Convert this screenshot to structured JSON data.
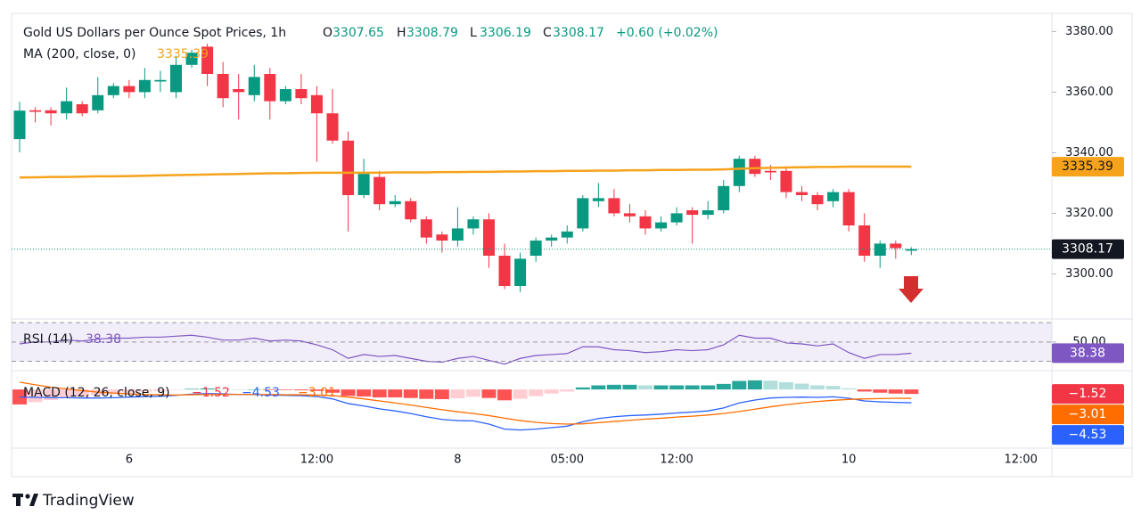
{
  "chart_data": [
    {
      "type": "candlestick",
      "title": "Gold US Dollars per Ounce Spot Prices, 1h",
      "ohlc_letters": [
        "O",
        "H",
        "L",
        "C"
      ],
      "change": "+0.60 (+0.02%)",
      "categories": [
        null,
        null,
        null,
        null,
        null,
        null,
        null,
        "6",
        null,
        null,
        null,
        null,
        null,
        null,
        null,
        null,
        null,
        null,
        null,
        "12:00",
        null,
        null,
        null,
        null,
        null,
        null,
        null,
        null,
        "8",
        null,
        null,
        null,
        null,
        null,
        null,
        "05:00",
        null,
        null,
        null,
        null,
        null,
        null,
        "12:00",
        null,
        null,
        null,
        null,
        null,
        null,
        null,
        null,
        null,
        null,
        "10",
        null,
        null,
        null,
        null,
        null,
        null,
        null,
        null,
        null,
        null,
        "12:00",
        null
      ],
      "open": [
        3344.5,
        3354,
        3354,
        3353,
        3356,
        3354,
        3359,
        3362,
        3360,
        3363.5,
        3360,
        3369,
        3375,
        3366,
        3361,
        3359,
        3366,
        3357,
        3361,
        3359,
        3353,
        3344,
        3326,
        3332,
        3323,
        3324,
        3318,
        3313,
        3311,
        3315,
        3318,
        3306,
        3296,
        3306,
        3311,
        3312,
        3315,
        3324,
        3325,
        3320,
        3319,
        3315,
        3317,
        3321,
        3319.5,
        3321,
        3329,
        3338,
        3334,
        3334,
        3327,
        3326,
        3324,
        3327,
        3316,
        3306,
        3310,
        3307.65,
        null,
        null,
        null,
        null,
        null,
        null,
        null,
        null
      ],
      "high": [
        3356.8,
        3355,
        3355,
        3361.5,
        3357,
        3365,
        3363,
        3364,
        3368,
        3367,
        3372,
        3374,
        3376,
        3370,
        3366,
        3369,
        3368,
        3362,
        3366,
        3362,
        3361,
        3347,
        3338,
        3334,
        3326,
        3325,
        3319,
        3314,
        3322,
        3319,
        3320,
        3310,
        3307,
        3312,
        3313,
        3316,
        3326,
        3330,
        3328,
        3323,
        3321,
        3319,
        3322,
        3322,
        3324,
        3331,
        3339,
        3339,
        3336,
        3335,
        3329,
        3327,
        3328,
        3328,
        3320,
        3311,
        3311,
        3308.79,
        null,
        null,
        null,
        null,
        null,
        null,
        null,
        null
      ],
      "low": [
        3340.1,
        3350,
        3349,
        3351,
        3352,
        3353,
        3358,
        3358,
        3358,
        3360,
        3358,
        3368,
        3362,
        3355,
        3351,
        3357,
        3351,
        3356,
        3356,
        3337,
        3343,
        3314,
        3325,
        3321,
        3322,
        3317,
        3310,
        3307,
        3309,
        3313,
        3302,
        3295,
        3294,
        3304,
        3309,
        3310,
        3314,
        3322,
        3319,
        3317,
        3313,
        3314,
        3316,
        3310,
        3318,
        3320,
        3327,
        3332,
        3331,
        3325,
        3324,
        3321,
        3322,
        3314,
        3304,
        3302,
        3305,
        3306.19,
        null,
        null,
        null,
        null,
        null,
        null,
        null,
        null
      ],
      "close": [
        3353.9,
        3353.5,
        3353,
        3357,
        3353,
        3359,
        3362,
        3360,
        3364,
        3364,
        3369,
        3373,
        3366,
        3358,
        3360,
        3365,
        3357,
        3361,
        3358,
        3353,
        3344,
        3326,
        3333,
        3323,
        3324,
        3318,
        3312,
        3311,
        3315,
        3318,
        3306,
        3296,
        3305,
        3311,
        3312,
        3314,
        3325,
        3325,
        3320,
        3319,
        3315,
        3317,
        3320,
        3319.5,
        3321,
        3329,
        3338,
        3333,
        3333.5,
        3327,
        3326,
        3323,
        3327,
        3316,
        3306,
        3310,
        3308.5,
        3308.17,
        null,
        null,
        null,
        null,
        null,
        null,
        null,
        null
      ],
      "up_color": "#089981",
      "down_color": "#f23645",
      "series": [
        {
          "name": "MA (200, close, 0)",
          "color": "#f7a21b",
          "values": [
            3331.8,
            3331.9,
            3332.0,
            3332.0,
            3332.1,
            3332.2,
            3332.2,
            3332.3,
            3332.4,
            3332.5,
            3332.6,
            3332.7,
            3332.8,
            3332.9,
            3333.0,
            3333.1,
            3333.2,
            3333.2,
            3333.3,
            3333.4,
            3333.4,
            3333.4,
            3333.4,
            3333.4,
            3333.5,
            3333.5,
            3333.5,
            3333.6,
            3333.6,
            3333.7,
            3333.7,
            3333.8,
            3333.8,
            3333.9,
            3333.9,
            3334.0,
            3334.0,
            3334.1,
            3334.1,
            3334.2,
            3334.2,
            3334.3,
            3334.3,
            3334.4,
            3334.4,
            3334.5,
            3334.7,
            3334.9,
            3335.0,
            3335.1,
            3335.2,
            3335.3,
            3335.3,
            3335.4,
            3335.4,
            3335.4,
            3335.4,
            3335.39,
            null,
            null,
            null,
            null,
            null,
            null,
            null,
            null
          ]
        }
      ],
      "ylim": [
        3286,
        3386
      ],
      "yticks": [
        {
          "value": 3300,
          "label": "3300.00"
        },
        {
          "value": 3320,
          "label": "3320.00"
        },
        {
          "value": 3340,
          "label": "3340.00"
        },
        {
          "value": 3360,
          "label": "3360.00"
        },
        {
          "value": 3380,
          "label": "3380.00"
        }
      ],
      "grid": false
    },
    {
      "type": "line",
      "series": [
        {
          "name": "RSI (14)",
          "color": "#7e57c2",
          "values": [
            48,
            50,
            50,
            52,
            51,
            53,
            54,
            54,
            55,
            55,
            56,
            57,
            55,
            52,
            52,
            54,
            51,
            52,
            51,
            47,
            42,
            33,
            37,
            35,
            36,
            33,
            30,
            29,
            33,
            35,
            31,
            27,
            33,
            36,
            37,
            38,
            45,
            45,
            42,
            41,
            39,
            40,
            42,
            41,
            42,
            47,
            57,
            54,
            54,
            49,
            48,
            46,
            48,
            39,
            33,
            37,
            37,
            38.38,
            null,
            null,
            null,
            null,
            null,
            null,
            null,
            null
          ]
        }
      ],
      "band": [
        30,
        70
      ],
      "ylim": [
        24,
        72
      ],
      "yticks": [
        {
          "value": 50,
          "label": "50.00"
        }
      ]
    },
    {
      "type": "macd",
      "title": "MACD (12, 26, close, 9)",
      "series": [
        {
          "name": "Histogram",
          "colors": [
            "#26a69a",
            "#b2dfdb",
            "#ffcdd2",
            "#ff5252"
          ],
          "values": [
            -5.1,
            -4.3,
            -3.6,
            -3.0,
            -2.5,
            -2.0,
            -1.6,
            -1.1,
            -0.7,
            -0.5,
            -0.1,
            0.2,
            0.3,
            0.2,
            0,
            0,
            -0.2,
            -0.2,
            -0.3,
            -0.5,
            -1.1,
            -2.2,
            -2.4,
            -2.7,
            -2.7,
            -2.9,
            -3.2,
            -3.3,
            -3.0,
            -2.5,
            -2.9,
            -3.7,
            -3.2,
            -2.3,
            -1.4,
            -0.7,
            0.7,
            1.4,
            1.6,
            1.6,
            1.4,
            1.4,
            1.4,
            1.4,
            1.4,
            1.9,
            2.9,
            3.1,
            3.0,
            2.5,
            2.0,
            1.4,
            1.2,
            0.4,
            -0.7,
            -1.1,
            -1.4,
            -1.52,
            null,
            null,
            null,
            null,
            null,
            null,
            null,
            null
          ],
          "last_label": "−1.52",
          "color": "#f23645"
        },
        {
          "name": "MACD",
          "color": "#2962ff",
          "last_label": "−4.53",
          "values": [
            -2.6,
            -2.7,
            -2.8,
            -2.8,
            -2.9,
            -2.9,
            -2.8,
            -2.6,
            -2.4,
            -2.3,
            -2.0,
            -1.6,
            -1.4,
            -1.5,
            -1.7,
            -1.7,
            -1.9,
            -2.0,
            -2.1,
            -2.4,
            -3.2,
            -4.8,
            -5.6,
            -6.6,
            -7.3,
            -8.2,
            -9.3,
            -10.2,
            -10.6,
            -10.7,
            -11.8,
            -13.5,
            -13.8,
            -13.5,
            -13.0,
            -12.5,
            -11.0,
            -9.9,
            -9.3,
            -8.9,
            -8.7,
            -8.4,
            -8.0,
            -7.7,
            -7.3,
            -6.3,
            -4.6,
            -3.6,
            -2.9,
            -2.7,
            -2.6,
            -2.7,
            -2.5,
            -3.0,
            -3.9,
            -4.2,
            -4.4,
            -4.53,
            null,
            null,
            null,
            null,
            null,
            null,
            null,
            null
          ]
        },
        {
          "name": "Signal",
          "color": "#ff6d00",
          "last_label": "−3.01",
          "values": [
            2.5,
            1.6,
            0.8,
            0.2,
            -0.4,
            -0.9,
            -1.2,
            -1.5,
            -1.7,
            -1.8,
            -1.9,
            -1.8,
            -1.7,
            -1.7,
            -1.7,
            -1.7,
            -1.7,
            -1.8,
            -1.8,
            -1.9,
            -2.1,
            -2.6,
            -3.2,
            -3.9,
            -4.6,
            -5.3,
            -6.1,
            -6.9,
            -7.6,
            -8.2,
            -8.9,
            -9.8,
            -10.6,
            -11.2,
            -11.6,
            -11.8,
            -11.7,
            -11.3,
            -10.9,
            -10.5,
            -10.1,
            -9.8,
            -9.4,
            -9.1,
            -8.7,
            -8.2,
            -7.5,
            -6.7,
            -5.9,
            -5.2,
            -4.6,
            -4.1,
            -3.7,
            -3.4,
            -3.2,
            -3.1,
            -3.0,
            -3.01,
            null,
            null,
            null,
            null,
            null,
            null,
            null,
            null
          ]
        }
      ],
      "ylim": [
        -20.6,
        5.2
      ]
    }
  ],
  "branding": "TradingView"
}
